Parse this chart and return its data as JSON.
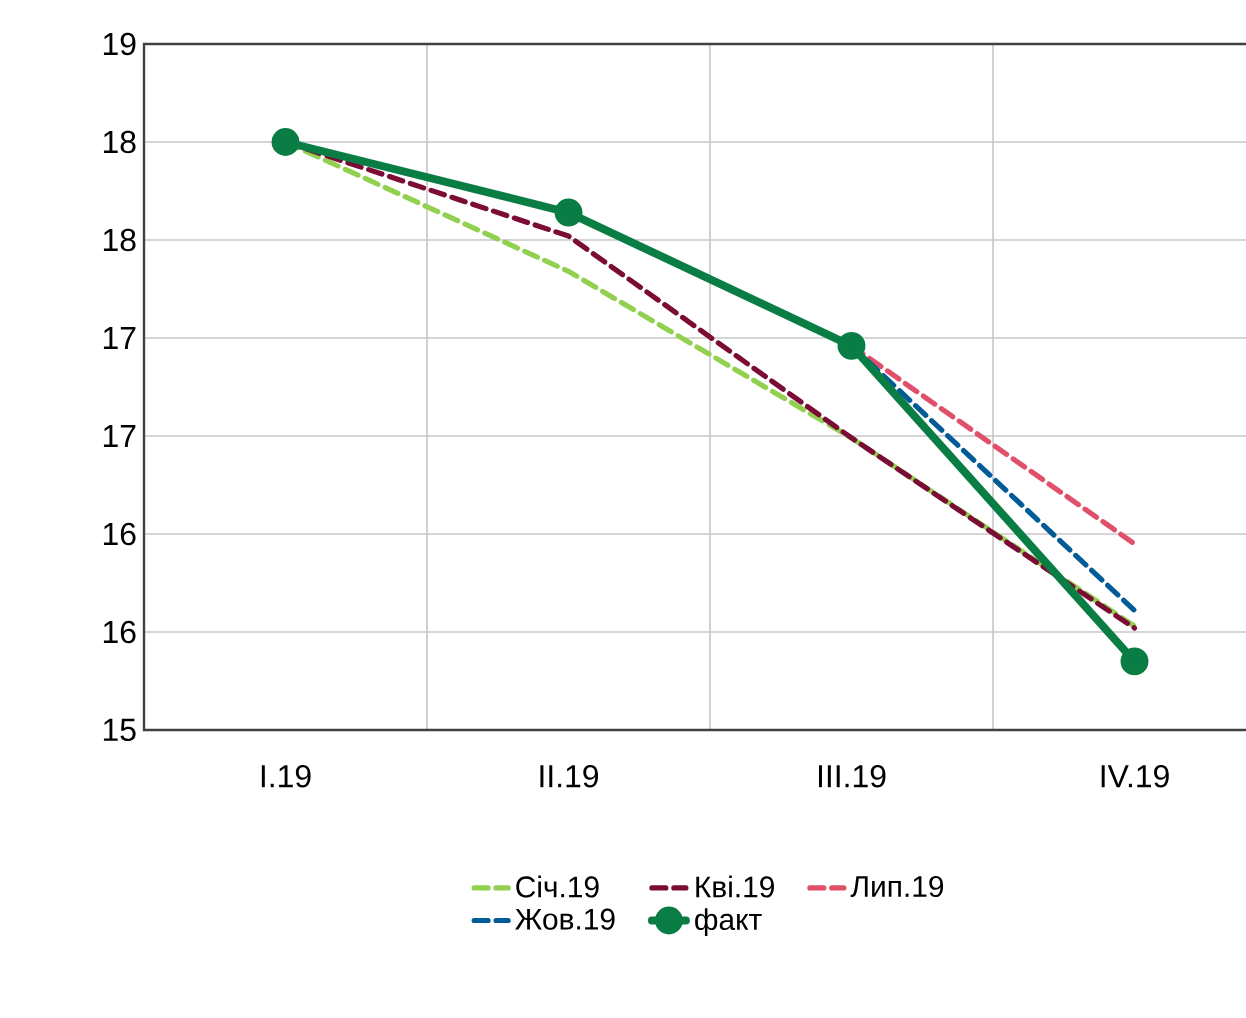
{
  "chart_data": {
    "type": "line",
    "categories": [
      "I.19",
      "II.19",
      "III.19",
      "IV.19"
    ],
    "series": [
      {
        "name": "Січ.19",
        "color": "#92d050",
        "line_style": "dashed",
        "values": [
          18.0,
          17.34,
          16.49,
          15.53
        ]
      },
      {
        "name": "Кві.19",
        "color": "#7b0c35",
        "line_style": "dashed",
        "values": [
          18.0,
          17.52,
          16.49,
          15.52
        ]
      },
      {
        "name": "Лип.19",
        "color": "#e0506a",
        "line_style": "dashed",
        "values": [
          null,
          null,
          16.96,
          15.95
        ]
      },
      {
        "name": "Жов.19",
        "color": "#005b96",
        "line_style": "dashed",
        "values": [
          null,
          null,
          16.96,
          15.61
        ]
      },
      {
        "name": "факт",
        "color": "#0a7d45",
        "line_style": "solid",
        "marker": "circle",
        "values": [
          18.0,
          17.64,
          16.96,
          15.35
        ]
      }
    ],
    "ylim": [
      15,
      18.5
    ],
    "yticks": [
      {
        "value": 15,
        "label": "15"
      },
      {
        "value": 15.5,
        "label": "16"
      },
      {
        "value": 16,
        "label": "16"
      },
      {
        "value": 16.5,
        "label": "17"
      },
      {
        "value": 17,
        "label": "17"
      },
      {
        "value": 17.5,
        "label": "18"
      },
      {
        "value": 18,
        "label": "18"
      },
      {
        "value": 18.5,
        "label": "19"
      }
    ],
    "grid": true,
    "legend": "bottom"
  }
}
